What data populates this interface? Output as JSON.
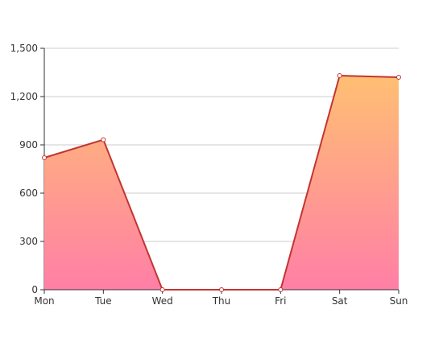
{
  "chart_data": {
    "type": "area",
    "categories": [
      "Mon",
      "Tue",
      "Wed",
      "Thu",
      "Fri",
      "Sat",
      "Sun"
    ],
    "series": [
      {
        "values": [
          820,
          932,
          0,
          0,
          0,
          1330,
          1320
        ]
      }
    ],
    "ylim": [
      0,
      1500
    ],
    "yticks": [
      0,
      300,
      600,
      900,
      1200,
      1500
    ],
    "ytick_labels": [
      "0",
      "300",
      "600",
      "900",
      "1,200",
      "1,500"
    ],
    "grid": true,
    "colors": {
      "line": "#c23531",
      "area_top": "#ffbf73",
      "area_bottom": "#ff7fa6",
      "grid": "#cccccc",
      "axis": "#333333",
      "point_fill": "#ffffff"
    }
  }
}
